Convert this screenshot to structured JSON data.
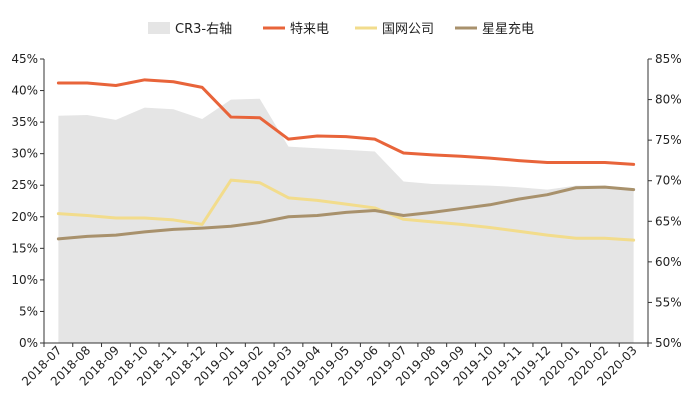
{
  "chart_data": {
    "type": "line",
    "categories": [
      "2018-07",
      "2018-08",
      "2018-09",
      "2018-10",
      "2018-11",
      "2018-12",
      "2019-01",
      "2019-02",
      "2019-03",
      "2019-04",
      "2019-05",
      "2019-06",
      "2019-07",
      "2019-08",
      "2019-09",
      "2019-10",
      "2019-11",
      "2019-12",
      "2020-01",
      "2020-02",
      "2020-03"
    ],
    "series": [
      {
        "name": "CR3-右轴",
        "type": "area",
        "axis": "right",
        "color": "#e5e5e5",
        "values": [
          78.0,
          78.1,
          77.5,
          79.0,
          78.8,
          77.6,
          80.0,
          80.1,
          74.2,
          74.0,
          73.8,
          73.6,
          69.9,
          69.6,
          69.5,
          69.4,
          69.2,
          68.9,
          69.4,
          69.4,
          68.8
        ]
      },
      {
        "name": "特来电",
        "axis": "left",
        "color": "#e8643a",
        "values": [
          41.2,
          41.2,
          40.8,
          41.7,
          41.4,
          40.5,
          35.8,
          35.7,
          32.3,
          32.8,
          32.7,
          32.3,
          30.1,
          29.8,
          29.6,
          29.3,
          28.9,
          28.6,
          28.6,
          28.6,
          28.3
        ]
      },
      {
        "name": "国网公司",
        "axis": "left",
        "color": "#f2dc8c",
        "values": [
          20.5,
          20.2,
          19.8,
          19.8,
          19.5,
          18.8,
          25.8,
          25.4,
          23.0,
          22.6,
          22.0,
          21.4,
          19.6,
          19.2,
          18.8,
          18.3,
          17.7,
          17.1,
          16.6,
          16.6,
          16.3
        ]
      },
      {
        "name": "星星充电",
        "axis": "left",
        "color": "#a8916c",
        "values": [
          16.5,
          16.9,
          17.1,
          17.6,
          18.0,
          18.2,
          18.5,
          19.1,
          20.0,
          20.2,
          20.7,
          21.0,
          20.2,
          20.7,
          21.3,
          21.9,
          22.8,
          23.5,
          24.6,
          24.7,
          24.3
        ]
      }
    ],
    "y_left": {
      "min": 0,
      "max": 45,
      "step": 5,
      "ticks": [
        "0%",
        "5%",
        "10%",
        "15%",
        "20%",
        "25%",
        "30%",
        "35%",
        "40%",
        "45%"
      ]
    },
    "y_right": {
      "min": 50,
      "max": 85,
      "step": 5,
      "ticks": [
        "50%",
        "55%",
        "60%",
        "65%",
        "70%",
        "75%",
        "80%",
        "85%"
      ]
    },
    "grid": false,
    "legend_position": "top"
  }
}
